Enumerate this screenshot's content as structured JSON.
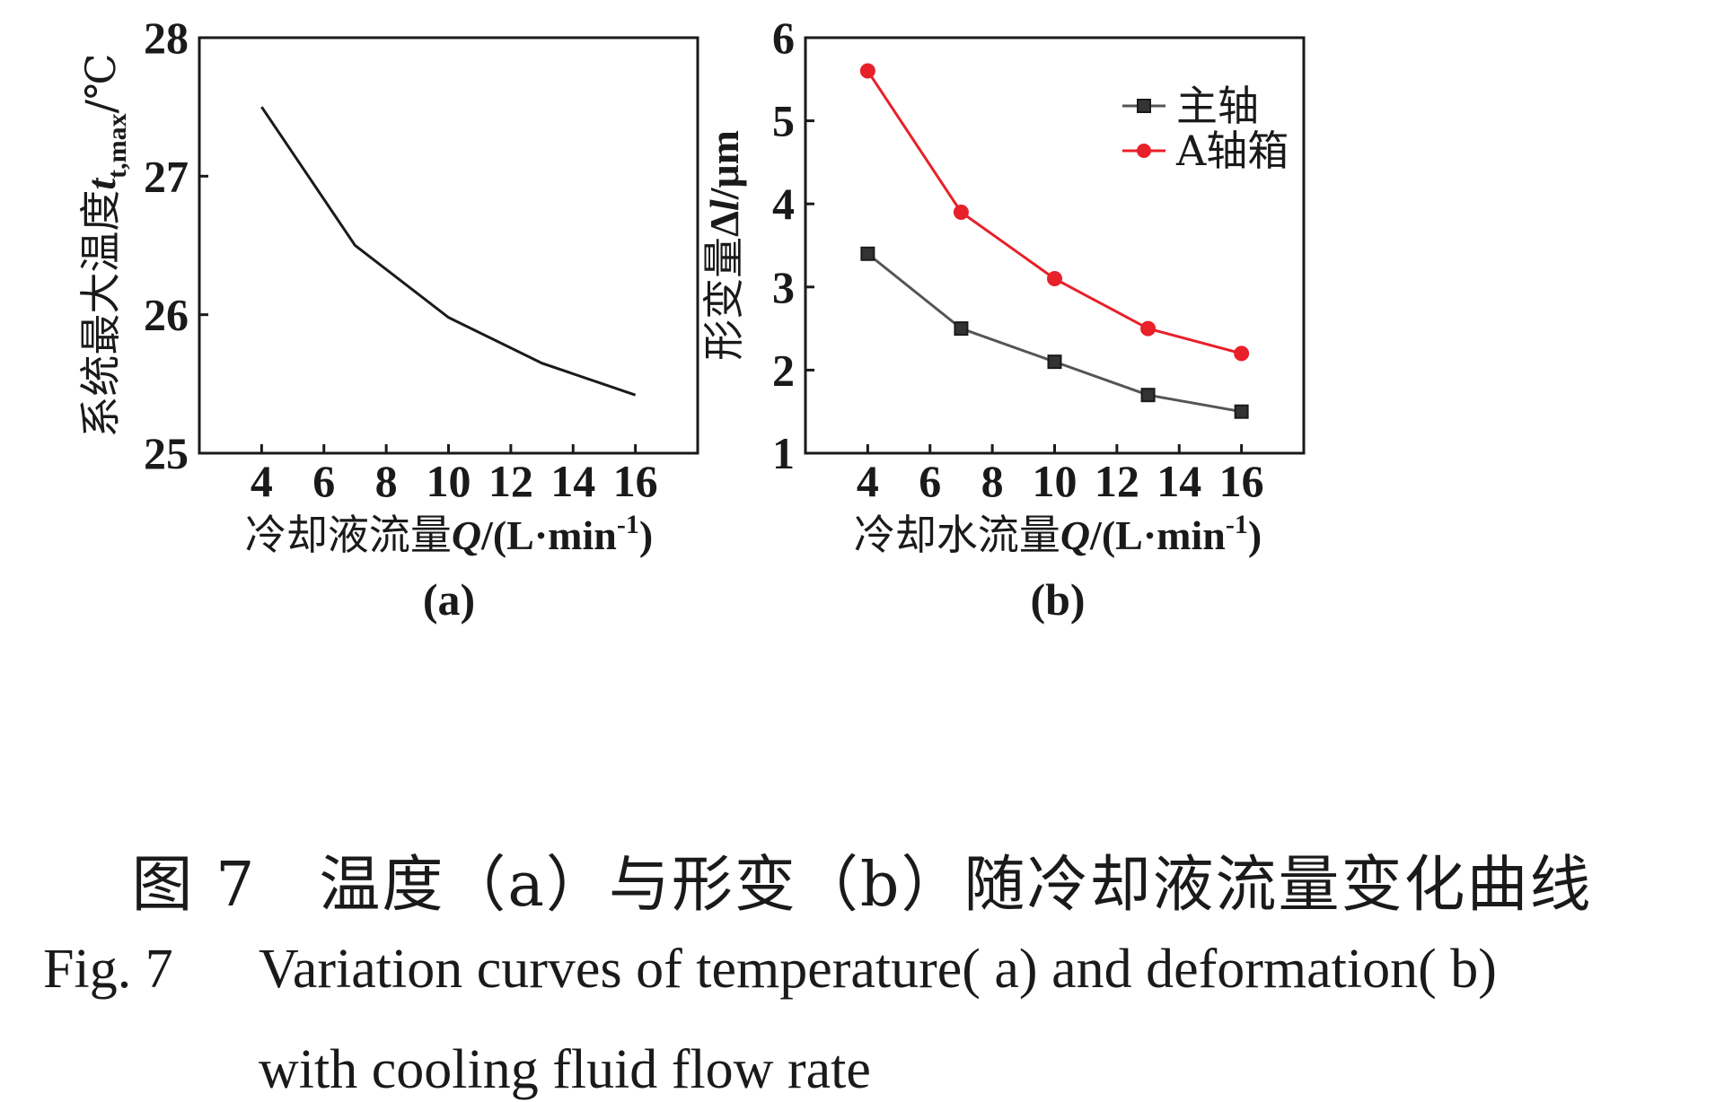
{
  "chart_data": [
    {
      "type": "line",
      "panel_label": "(a)",
      "x": [
        4,
        7,
        10,
        13,
        16
      ],
      "series": [
        {
          "values": [
            27.5,
            26.5,
            25.98,
            25.65,
            25.42
          ],
          "color": "#1a1a1a",
          "marker": "none"
        }
      ],
      "xlabel": "冷却液流量Q/(L·min⁻¹)",
      "ylabel": "系统最大温度t_t,max/℃",
      "xlim": [
        2,
        18
      ],
      "ylim": [
        25,
        28
      ],
      "xticks": [
        "4",
        "6",
        "8",
        "10",
        "12",
        "14",
        "16"
      ],
      "yticks": [
        "25",
        "26",
        "27",
        "28"
      ],
      "grid": false
    },
    {
      "type": "line",
      "panel_label": "(b)",
      "x": [
        4,
        7,
        10,
        13,
        16
      ],
      "series": [
        {
          "name": "主轴",
          "values": [
            3.4,
            2.5,
            2.1,
            1.7,
            1.5
          ],
          "color": "#555555",
          "marker": "square"
        },
        {
          "name": "A轴箱",
          "values": [
            5.6,
            3.9,
            3.1,
            2.5,
            2.2
          ],
          "color": "#e8202a",
          "marker": "circle"
        }
      ],
      "xlabel": "冷却水流量Q/(L·min⁻¹)",
      "ylabel": "形变量Δl/μm",
      "xlim": [
        2,
        18
      ],
      "ylim": [
        1,
        6
      ],
      "xticks": [
        "4",
        "6",
        "8",
        "10",
        "12",
        "14",
        "16"
      ],
      "yticks": [
        "1",
        "2",
        "3",
        "4",
        "5",
        "6"
      ],
      "legend": "top-right",
      "grid": false
    }
  ],
  "caption": {
    "cn": "图 7　温度（a）与形变（b）随冷却液流量变化曲线",
    "en_label": "Fig. 7",
    "en_line1": "Variation curves of temperature( a) and deformation( b)",
    "en_line2": "with cooling fluid flow rate"
  }
}
